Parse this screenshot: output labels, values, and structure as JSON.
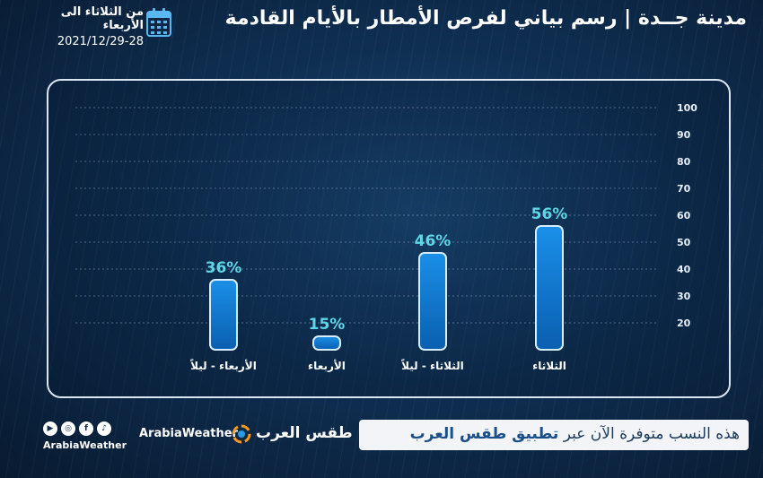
{
  "header": {
    "title": "مدينة جــدة | رسم بياني لفرص الأمطار بالأيام القادمة",
    "date_range": "من الثلاثاء  الى الأربعاء",
    "date_value": "2021/12/29-28"
  },
  "chart_data": {
    "type": "bar",
    "categories": [
      "الثلاثاء",
      "الثلاثاء - ليلاً",
      "الأربعاء",
      "الأربعاء - ليلاً"
    ],
    "values": [
      56,
      46,
      15,
      36
    ],
    "value_labels": [
      "56%",
      "46%",
      "15%",
      "36%"
    ],
    "y_ticks": [
      20,
      30,
      40,
      50,
      60,
      70,
      80,
      90,
      100
    ],
    "ylim": [
      10,
      100
    ],
    "y_axis_side": "right",
    "grid": true,
    "bar_color": "#0d7fd6",
    "label_color": "#5fd6e8"
  },
  "footer": {
    "prefix": "هذه النسب متوفرة الآن عبر ",
    "highlight": "تطبيق طقس العرب",
    "brand_en": "ArabiaWeather",
    "brand_ar": "طقس العرب",
    "social_handle": "ArabiaWeather",
    "social_icons": [
      "youtube-icon",
      "instagram-icon",
      "facebook-icon",
      "tiktok-icon"
    ]
  }
}
